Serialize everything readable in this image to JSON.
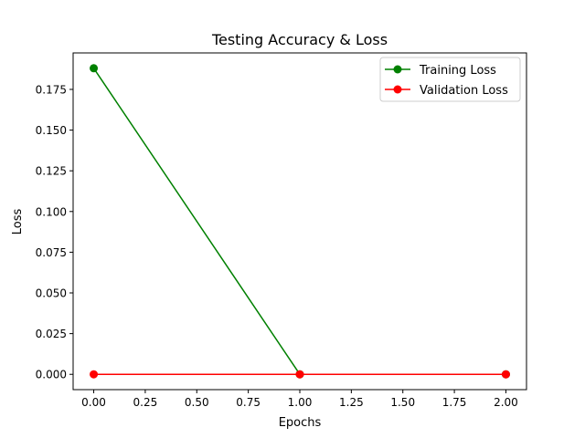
{
  "chart_data": {
    "type": "line",
    "title": "Testing Accuracy & Loss",
    "xlabel": "Epochs",
    "ylabel": "Loss",
    "xlim": [
      -0.1,
      2.1
    ],
    "ylim": [
      -0.0094,
      0.1974
    ],
    "xticks": [
      0.0,
      0.25,
      0.5,
      0.75,
      1.0,
      1.25,
      1.5,
      1.75,
      2.0
    ],
    "xtick_labels": [
      "0.00",
      "0.25",
      "0.50",
      "0.75",
      "1.00",
      "1.25",
      "1.50",
      "1.75",
      "2.00"
    ],
    "yticks": [
      0.0,
      0.025,
      0.05,
      0.075,
      0.1,
      0.125,
      0.15,
      0.175
    ],
    "ytick_labels": [
      "0.000",
      "0.025",
      "0.050",
      "0.075",
      "0.100",
      "0.125",
      "0.150",
      "0.175"
    ],
    "grid": false,
    "legend_position": "top-right",
    "series": [
      {
        "name": "Training Loss",
        "color": "#008000",
        "x": [
          0,
          1,
          2
        ],
        "y": [
          0.188,
          0.0,
          0.0
        ]
      },
      {
        "name": "Validation Loss",
        "color": "#ff0000",
        "x": [
          0,
          1,
          2
        ],
        "y": [
          0.0,
          0.0,
          0.0
        ]
      }
    ]
  }
}
